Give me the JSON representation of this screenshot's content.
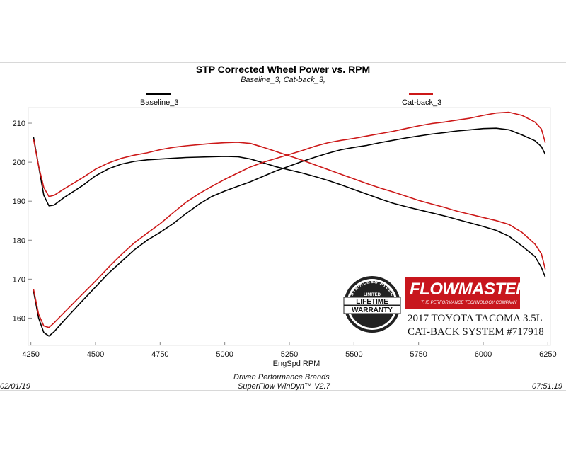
{
  "chart_data": {
    "type": "line",
    "title": "STP Corrected Wheel Power vs. RPM",
    "subtitle": "Baseline_3, Cat-back_3,",
    "xlabel": "EngSpd  RPM",
    "ylabel": "",
    "xlim": [
      4240,
      6260
    ],
    "ylim": [
      153,
      214
    ],
    "x_ticks": [
      4250,
      4500,
      4750,
      5000,
      5250,
      5500,
      5750,
      6000,
      6250
    ],
    "y_ticks": [
      160,
      170,
      180,
      190,
      200,
      210
    ],
    "grid": false,
    "legend_position": "top",
    "series": [
      {
        "name": "Baseline_3",
        "color": "#000000",
        "curves": [
          {
            "x": [
              4260,
              4280,
              4300,
              4320,
              4340,
              4380,
              4450,
              4500,
              4550,
              4600,
              4650,
              4700,
              4750,
              4800,
              4850,
              4900,
              4950,
              5000,
              5050,
              5100,
              5150,
              5200,
              5250,
              5300,
              5350,
              5400,
              5450,
              5500,
              5550,
              5600,
              5650,
              5700,
              5750,
              5800,
              5850,
              5900,
              5950,
              6000,
              6050,
              6100,
              6150,
              6200,
              6225,
              6240
            ],
            "y": [
              206.5,
              199,
              191.5,
              188.8,
              189,
              191,
              194,
              196.5,
              198.3,
              199.5,
              200.2,
              200.6,
              200.8,
              201,
              201.2,
              201.3,
              201.4,
              201.5,
              201.4,
              200.8,
              199.8,
              198.8,
              198,
              197.2,
              196.3,
              195.3,
              194.2,
              193,
              191.8,
              190.6,
              189.5,
              188.6,
              187.8,
              187,
              186.2,
              185.3,
              184.4,
              183.5,
              182.5,
              181,
              178.5,
              175.8,
              173,
              170.5
            ]
          },
          {
            "x": [
              4260,
              4280,
              4300,
              4320,
              4340,
              4380,
              4450,
              4500,
              4550,
              4600,
              4650,
              4700,
              4750,
              4800,
              4850,
              4900,
              4950,
              5000,
              5050,
              5100,
              5150,
              5200,
              5250,
              5300,
              5350,
              5400,
              5450,
              5500,
              5550,
              5600,
              5650,
              5700,
              5750,
              5800,
              5850,
              5900,
              5950,
              6000,
              6050,
              6100,
              6150,
              6200,
              6225,
              6240
            ],
            "y": [
              167,
              160,
              156.3,
              155.4,
              156.5,
              159.5,
              164.5,
              168,
              171.5,
              174.5,
              177.5,
              180,
              182,
              184.2,
              186.8,
              189.2,
              191.2,
              192.6,
              193.8,
              195,
              196.4,
              197.8,
              199,
              200.2,
              201.3,
              202.3,
              203.2,
              203.8,
              204.3,
              205,
              205.6,
              206.2,
              206.7,
              207.2,
              207.6,
              208,
              208.3,
              208.6,
              208.7,
              208.3,
              207,
              205.5,
              204,
              202
            ]
          }
        ]
      },
      {
        "name": "Cat-back_3",
        "color": "#cc1818",
        "curves": [
          {
            "x": [
              4260,
              4280,
              4300,
              4320,
              4340,
              4380,
              4450,
              4500,
              4550,
              4600,
              4650,
              4700,
              4750,
              4800,
              4850,
              4900,
              4950,
              5000,
              5050,
              5100,
              5150,
              5200,
              5250,
              5300,
              5350,
              5400,
              5450,
              5500,
              5550,
              5600,
              5650,
              5700,
              5750,
              5800,
              5850,
              5900,
              5950,
              6000,
              6050,
              6100,
              6150,
              6200,
              6225,
              6240
            ],
            "y": [
              206,
              199,
              193.5,
              191.2,
              191.5,
              193.2,
              196,
              198.2,
              199.8,
              201,
              201.8,
              202.4,
              203.2,
              203.8,
              204.2,
              204.5,
              204.8,
              205,
              205.1,
              204.8,
              203.8,
              202.7,
              201.6,
              200.5,
              199.3,
              198.1,
              196.9,
              195.7,
              194.5,
              193.4,
              192.4,
              191.3,
              190.2,
              189.3,
              188.4,
              187.4,
              186.6,
              185.8,
              185,
              184,
              182,
              179,
              176.5,
              172.5
            ]
          },
          {
            "x": [
              4260,
              4280,
              4300,
              4320,
              4340,
              4380,
              4450,
              4500,
              4550,
              4600,
              4650,
              4700,
              4750,
              4800,
              4850,
              4900,
              4950,
              5000,
              5050,
              5100,
              5150,
              5200,
              5250,
              5300,
              5350,
              5400,
              5450,
              5500,
              5550,
              5600,
              5650,
              5700,
              5750,
              5800,
              5850,
              5900,
              5950,
              6000,
              6050,
              6100,
              6150,
              6200,
              6225,
              6240
            ],
            "y": [
              167.5,
              161,
              158,
              157.6,
              158.8,
              161.5,
              166.2,
              169.5,
              173,
              176.3,
              179.3,
              181.8,
              184.2,
              187,
              189.7,
              191.9,
              193.8,
              195.6,
              197.2,
              198.8,
              200,
              201,
              202,
              203,
              204.1,
              205,
              205.6,
              206.1,
              206.7,
              207.3,
              207.9,
              208.6,
              209.3,
              209.9,
              210.3,
              210.8,
              211.3,
              212,
              212.6,
              212.8,
              212,
              210.3,
              208.5,
              205
            ]
          }
        ]
      }
    ],
    "footer": {
      "date": "02/01/19",
      "company": "Driven Performance Brands",
      "software": "SuperFlow WinDyn™  V2.7",
      "time": "07:51:19"
    }
  },
  "badge": {
    "arc_text": "STAINLESS STEEL",
    "limited": "LIMITED",
    "line1": "LIFETIME",
    "line2": "WARRANTY",
    "brand": "FLOWMASTER",
    "tagline": "THE PERFORMANCE TECHNOLOGY COMPANY",
    "vehicle": "2017 TOYOTA TACOMA 3.5L",
    "system": "CAT-BACK SYSTEM #717918",
    "brand_color": "#c8161d"
  }
}
